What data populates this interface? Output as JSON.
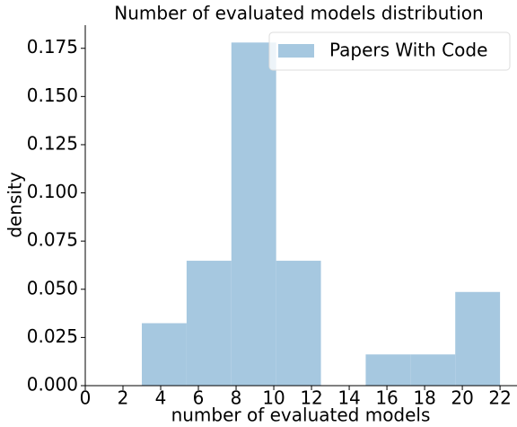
{
  "chart_data": {
    "type": "histogram",
    "title": "Number of evaluated models distribution",
    "x_label": "number of evaluated models",
    "y_label": "density",
    "series": [
      {
        "name": "Papers With Code",
        "color": "#a6c8e0",
        "bins": [
          3,
          5.375,
          7.75,
          10.125,
          12.5,
          14.875,
          17.25,
          19.625,
          22
        ],
        "values": [
          0.0324,
          0.0648,
          0.178,
          0.0648,
          0,
          0.0162,
          0.0162,
          0.0486
        ]
      }
    ],
    "xlim": [
      0,
      22.9
    ],
    "xticks": [
      0,
      2,
      4,
      6,
      8,
      10,
      12,
      14,
      16,
      18,
      20,
      22
    ],
    "ylim": [
      0,
      0.187
    ],
    "yticks": [
      {
        "value": 0,
        "label": "0.000"
      },
      {
        "value": 0.025,
        "label": "0.025"
      },
      {
        "value": 0.05,
        "label": "0.050"
      },
      {
        "value": 0.075,
        "label": "0.075"
      },
      {
        "value": 0.1,
        "label": "0.100"
      },
      {
        "value": 0.125,
        "label": "0.125"
      },
      {
        "value": 0.15,
        "label": "0.150"
      },
      {
        "value": 0.175,
        "label": "0.175"
      }
    ],
    "legend": "upper right"
  }
}
